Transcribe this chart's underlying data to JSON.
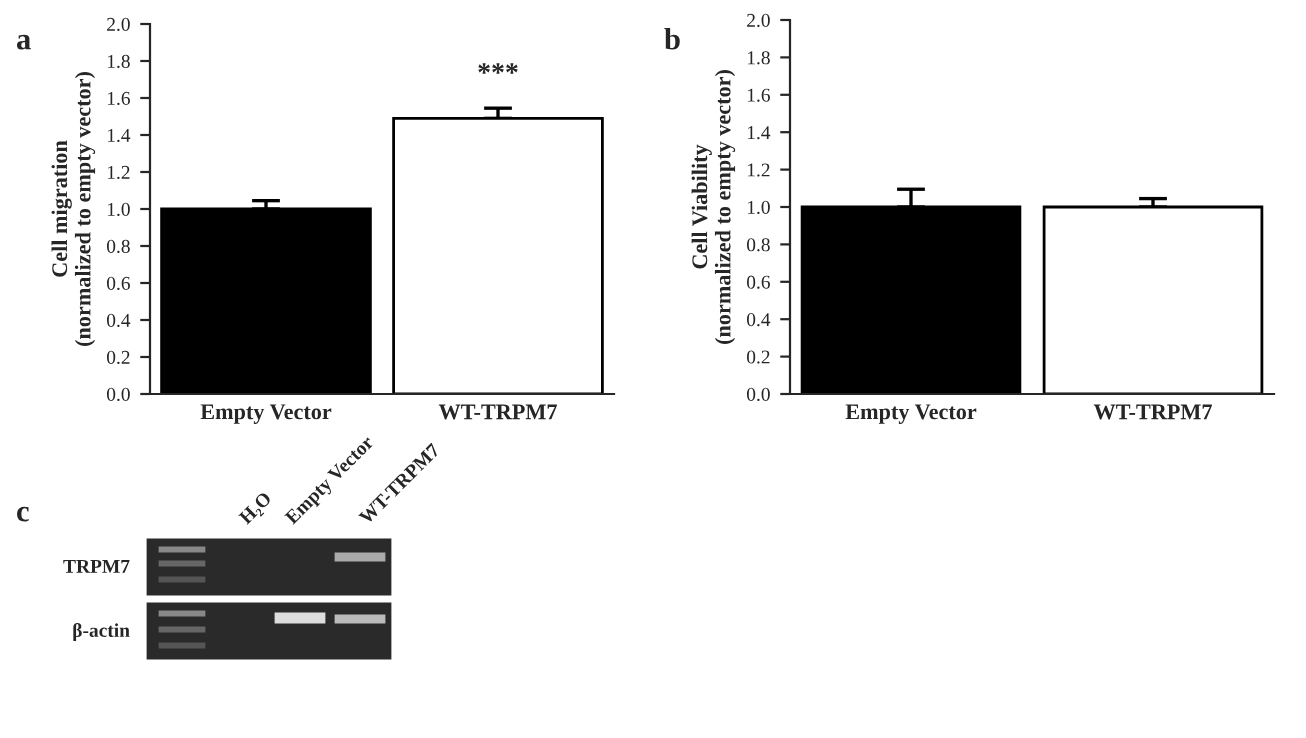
{
  "chart_data": [
    {
      "type": "bar",
      "title": "a",
      "ylabel": "Cell migration\n(normalized to empty vector)",
      "categories": [
        "Empty Vector",
        "WT-TRPM7"
      ],
      "values": [
        1.0,
        1.49
      ],
      "errors": [
        0.045,
        0.055
      ],
      "colors": [
        "#000000",
        "#ffffff"
      ],
      "ylim": [
        0,
        2.0
      ],
      "yticks": [
        {
          "value": 0,
          "label": "0.0"
        },
        {
          "value": 0.2,
          "label": "0.2"
        },
        {
          "value": 0.4,
          "label": "0.4"
        },
        {
          "value": 0.6,
          "label": "0.6"
        },
        {
          "value": 0.8,
          "label": "0.8"
        },
        {
          "value": 1.0,
          "label": "1.0"
        },
        {
          "value": 1.2,
          "label": "1.2"
        },
        {
          "value": 1.4,
          "label": "1.4"
        },
        {
          "value": 1.6,
          "label": "1.6"
        },
        {
          "value": 1.8,
          "label": "1.8"
        },
        {
          "value": 2.0,
          "label": "2.0"
        }
      ],
      "annotations": [
        "***"
      ],
      "grid": false,
      "legend": false
    },
    {
      "type": "bar",
      "title": "b",
      "ylabel": "Cell Viability\n(normalized to empty vector)",
      "categories": [
        "Empty Vector",
        "WT-TRPM7"
      ],
      "values": [
        1.0,
        1.0
      ],
      "errors": [
        0.095,
        0.045
      ],
      "colors": [
        "#000000",
        "#ffffff"
      ],
      "ylim": [
        0,
        2.0
      ],
      "yticks": [
        {
          "value": 0,
          "label": "0.0"
        },
        {
          "value": 0.2,
          "label": "0.2"
        },
        {
          "value": 0.4,
          "label": "0.4"
        },
        {
          "value": 0.6,
          "label": "0.6"
        },
        {
          "value": 0.8,
          "label": "0.8"
        },
        {
          "value": 1.0,
          "label": "1.0"
        },
        {
          "value": 1.2,
          "label": "1.2"
        },
        {
          "value": 1.4,
          "label": "1.4"
        },
        {
          "value": 1.6,
          "label": "1.6"
        },
        {
          "value": 1.8,
          "label": "1.8"
        },
        {
          "value": 2.0,
          "label": "2.0"
        }
      ],
      "grid": false,
      "legend": false
    },
    {
      "type": "other",
      "title": "c",
      "annotations": [
        "H₂O",
        "Empty Vector",
        "WT-TRPM7",
        "TRPM7",
        "β-actin"
      ]
    }
  ]
}
